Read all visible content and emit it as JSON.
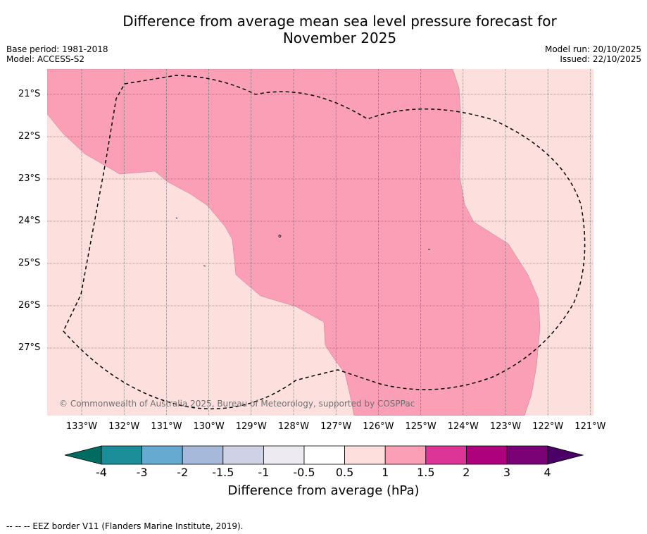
{
  "title": {
    "line1": "Difference from average mean sea level pressure forecast for",
    "line2": "November 2025"
  },
  "meta": {
    "base_period": "Base period: 1981-2018",
    "model": "Model: ACCESS-S2",
    "model_run": "Model run: 20/10/2025",
    "issued": "Issued: 22/10/2025"
  },
  "map": {
    "lat_labels": [
      "21°S",
      "22°S",
      "23°S",
      "24°S",
      "25°S",
      "26°S",
      "27°S"
    ],
    "lon_labels": [
      "133°W",
      "132°W",
      "131°W",
      "130°W",
      "129°W",
      "128°W",
      "127°W",
      "126°W",
      "125°W",
      "124°W",
      "123°W",
      "122°W",
      "121°W"
    ],
    "copyright": "© Commonwealth of Australia 2025, Bureau of Meteorology, supported by COSPPac",
    "colors": {
      "band_0_5_to_1": "#fde0de",
      "band_1_to_1_5": "#fa9fb6",
      "grid": "#555555"
    }
  },
  "colorbar": {
    "ticks": [
      "-4",
      "-3",
      "-2",
      "-1.5",
      "-1",
      "-0.5",
      "0.5",
      "1",
      "1.5",
      "2",
      "3",
      "4"
    ],
    "colors": [
      "#1b8e99",
      "#67aad1",
      "#a7b9da",
      "#cfd1e7",
      "#eeeaf2",
      "#ffffff",
      "#fde0de",
      "#fa9fb6",
      "#dd3597",
      "#ad017e",
      "#7b0177"
    ],
    "under_color": "#016b62",
    "over_color": "#4a0066",
    "label": "Difference from average (hPa)"
  },
  "footnote": "--  --  -- EEZ border V11 (Flanders Marine Institute, 2019)."
}
